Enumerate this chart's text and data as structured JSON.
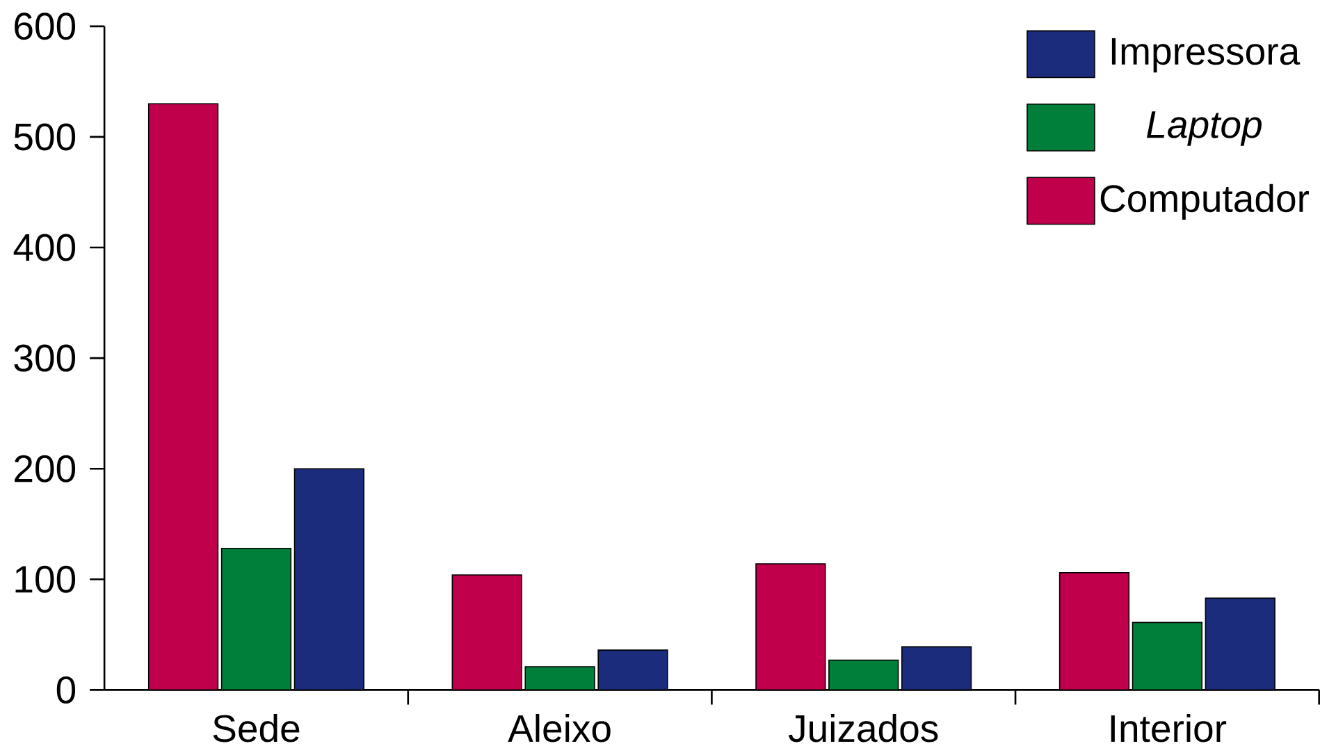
{
  "chart_data": {
    "type": "bar",
    "categories": [
      "Sede",
      "Aleixo",
      "Juizados",
      "Interior"
    ],
    "series": [
      {
        "name": "Computador",
        "color": "#c0004a",
        "values": [
          530,
          104,
          114,
          106
        ]
      },
      {
        "name": "*Laptop*",
        "color": "#007f3a",
        "values": [
          128,
          21,
          27,
          61
        ]
      },
      {
        "name": "Impressora",
        "color": "#1c2c7c",
        "values": [
          200,
          36,
          39,
          83
        ]
      }
    ],
    "ylim": [
      0,
      600
    ],
    "yticks": [
      0,
      100,
      200,
      300,
      400,
      500,
      600
    ],
    "grid": false,
    "legend": "top right"
  }
}
